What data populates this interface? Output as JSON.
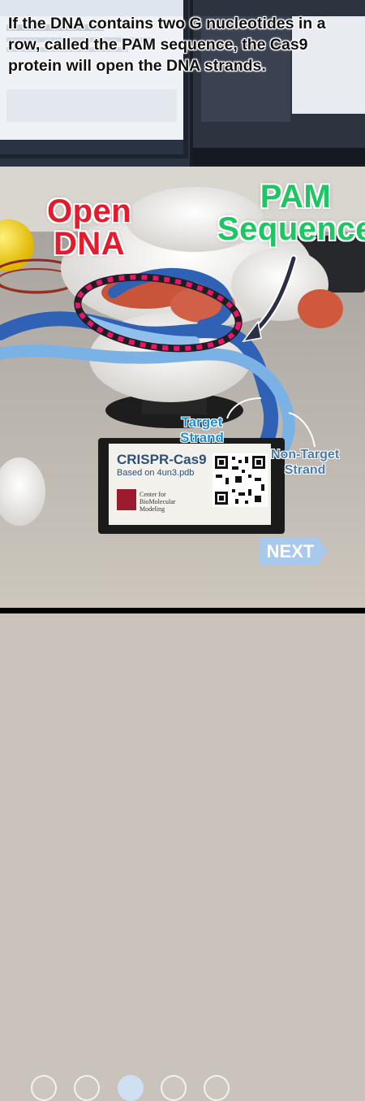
{
  "caption": "If the DNA contains two G nucleotides in a row, called the PAM sequence, the Cas9 protein will open the DNA strands.",
  "labels": {
    "open_dna_line1": "Open",
    "open_dna_line2": "DNA",
    "pam_line1": "PAM",
    "pam_line2": "Sequence",
    "target_line1": "Target",
    "target_line2": "Strand",
    "nontarget_line1": "Non-Target",
    "nontarget_line2": "Strand"
  },
  "plaque": {
    "title": "CRISPR-Cas9",
    "subtitle": "Based on 4un3.pdb",
    "org_line1": "Center for",
    "org_line2": "BioMolecular",
    "org_line3": "Modeling",
    "logo_text": "MSOE"
  },
  "pager": {
    "total": 5,
    "current_index": 2,
    "next_label": "NEXT"
  },
  "colors": {
    "open_dna": "#e41b2c",
    "pam": "#1fc463",
    "target_strand": "#1d8fd8",
    "nontarget_strand": "#4b7aa8",
    "dashed_ellipse": "#e8156f",
    "next_button": "#a9c9ec"
  }
}
